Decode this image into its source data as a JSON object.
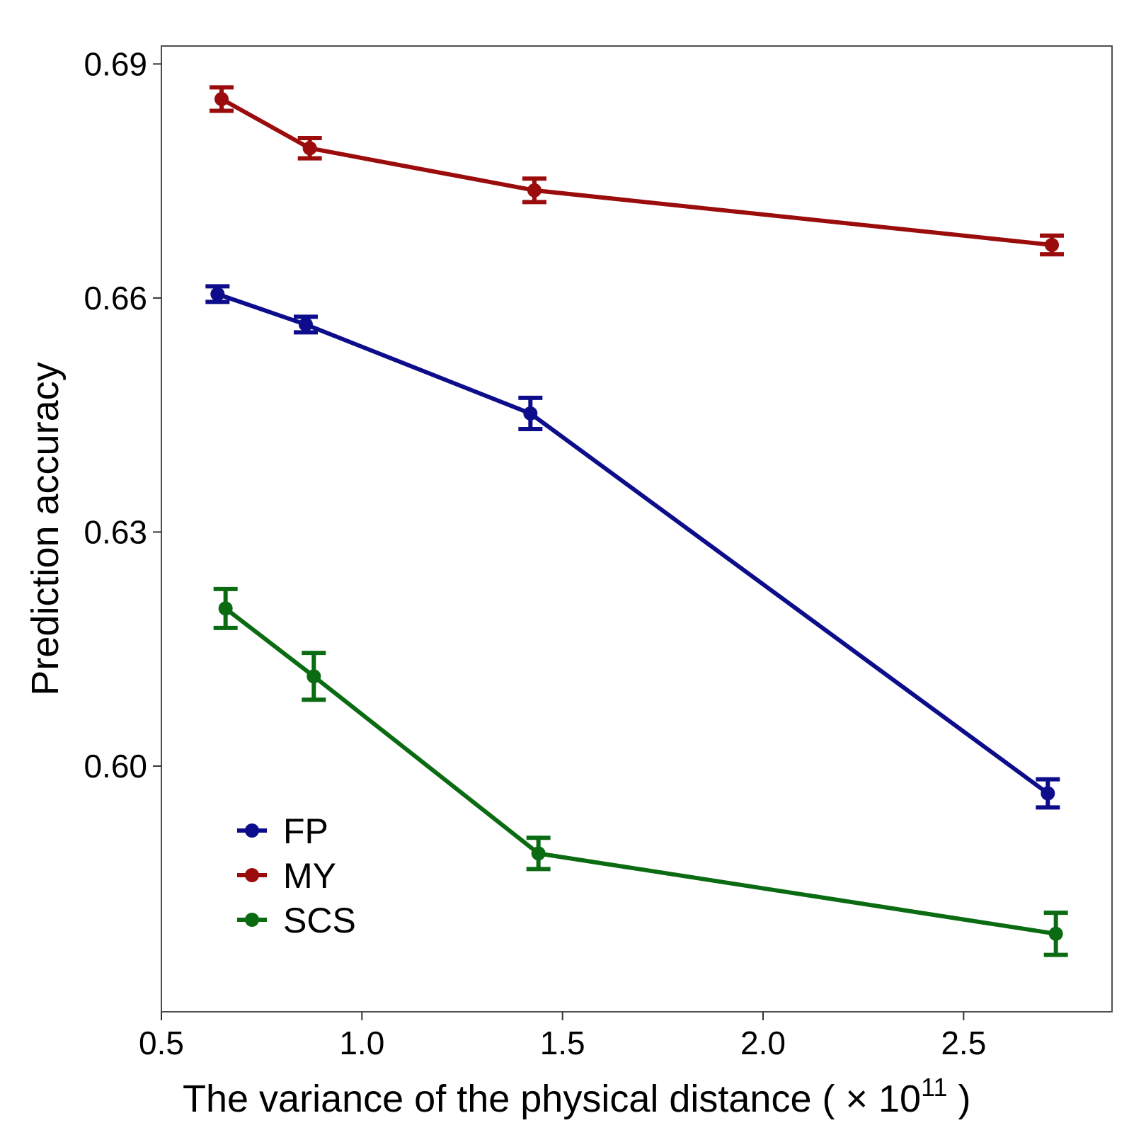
{
  "chart_data": {
    "type": "line",
    "xlabel": "The variance of the physical distance ( × 10",
    "xlabel_exponent": "11",
    "xlabel_close": " )",
    "ylabel": "Prediction accuracy",
    "xlim": [
      0.5,
      2.87
    ],
    "ylim": [
      0.5685,
      0.6923
    ],
    "x_ticks": [
      0.5,
      1.0,
      1.5,
      2.0,
      2.5
    ],
    "x_tick_labels": [
      "0.5",
      "1.0",
      "1.5",
      "2.0",
      "2.5"
    ],
    "y_ticks": [
      0.6,
      0.63,
      0.66,
      0.69
    ],
    "y_tick_labels": [
      "0.60",
      "0.63",
      "0.66",
      "0.69"
    ],
    "grid": false,
    "legend_position": "bottom-left",
    "series": [
      {
        "name": "FP",
        "color": "#0d0d8c",
        "x": [
          0.64,
          0.86,
          1.42,
          2.71
        ],
        "y": [
          0.6605,
          0.6566,
          0.6452,
          0.5965
        ],
        "err": [
          0.001,
          0.001,
          0.002,
          0.0018
        ]
      },
      {
        "name": "MY",
        "color": "#9b0c0c",
        "x": [
          0.65,
          0.87,
          1.43,
          2.72
        ],
        "y": [
          0.6855,
          0.6792,
          0.6738,
          0.6668
        ],
        "err": [
          0.0015,
          0.0013,
          0.0015,
          0.0012
        ]
      },
      {
        "name": "SCS",
        "color": "#0a6b12",
        "x": [
          0.66,
          0.88,
          1.44,
          2.73
        ],
        "y": [
          0.6202,
          0.6115,
          0.5888,
          0.5785
        ],
        "err": [
          0.0025,
          0.003,
          0.002,
          0.0027
        ]
      }
    ]
  }
}
